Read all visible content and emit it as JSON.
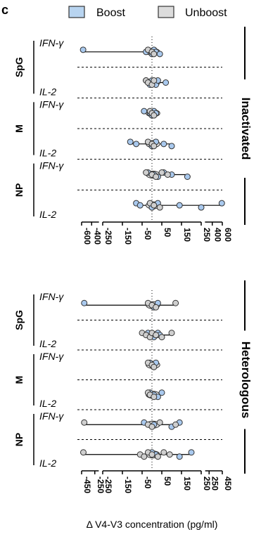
{
  "panel_letter": "c",
  "legend": {
    "items": [
      {
        "label": "Boost",
        "color": "#b8d4f0"
      },
      {
        "label": "Unboost",
        "color": "#dcdcdc"
      }
    ]
  },
  "colors": {
    "boost": "#a9c9ee",
    "unboost": "#cfcfcf",
    "stroke": "#333333"
  },
  "x_axis_title": "Δ V4-V3 concentration (pg/ml)",
  "chart_data": [
    {
      "type": "scatter",
      "group": "Inactivated",
      "x_ticks": [
        "-600",
        "-400",
        "-250",
        "-150",
        "-50",
        "50",
        "150",
        "250",
        "400",
        "600"
      ],
      "rows": [
        {
          "antigen": "SpG",
          "cytokine": "IFN-γ",
          "series": "Boost",
          "values": [
            -570,
            -30,
            0,
            10,
            20,
            40
          ]
        },
        {
          "antigen": "SpG",
          "cytokine": "IFN-γ",
          "series": "Unboost",
          "values": [
            -20,
            0,
            10
          ]
        },
        {
          "antigen": "SpG",
          "cytokine": "IL-2",
          "series": "Boost",
          "values": [
            -30,
            -20,
            -10,
            0,
            10,
            20,
            30,
            70
          ]
        },
        {
          "antigen": "SpG",
          "cytokine": "IL-2",
          "series": "Unboost",
          "values": [
            -30,
            -20,
            0,
            10
          ]
        },
        {
          "antigen": "M",
          "cytokine": "IFN-γ",
          "series": "Boost",
          "values": [
            -40,
            -10,
            0,
            10,
            20
          ]
        },
        {
          "antigen": "M",
          "cytokine": "IFN-γ",
          "series": "Unboost",
          "values": [
            -10,
            0,
            10
          ]
        },
        {
          "antigen": "M",
          "cytokine": "IL-2",
          "series": "Boost",
          "values": [
            -110,
            -80,
            0,
            20,
            60,
            100
          ]
        },
        {
          "antigen": "M",
          "cytokine": "IL-2",
          "series": "Unboost",
          "values": [
            -20,
            0,
            10
          ]
        },
        {
          "antigen": "NP",
          "cytokine": "IFN-γ",
          "series": "Boost",
          "values": [
            -20,
            10,
            30,
            60,
            100,
            180
          ]
        },
        {
          "antigen": "NP",
          "cytokine": "IFN-γ",
          "series": "Unboost",
          "values": [
            -30,
            0,
            20,
            50,
            80
          ]
        },
        {
          "antigen": "NP",
          "cytokine": "IL-2",
          "series": "Boost",
          "values": [
            -80,
            -60,
            0,
            30,
            140,
            250,
            590
          ]
        },
        {
          "antigen": "NP",
          "cytokine": "IL-2",
          "series": "Unboost",
          "values": [
            -10,
            10,
            40
          ]
        }
      ]
    },
    {
      "type": "scatter",
      "group": "Heterologous",
      "x_ticks": [
        "-450",
        "-250",
        "-250",
        "-150",
        "-50",
        "50",
        "150",
        "250",
        "250",
        "450"
      ],
      "rows": [
        {
          "antigen": "SpG",
          "cytokine": "IFN-γ",
          "series": "Boost",
          "values": [
            -420,
            0,
            10,
            30
          ]
        },
        {
          "antigen": "SpG",
          "cytokine": "IFN-γ",
          "series": "Unboost",
          "values": [
            -20,
            0,
            20,
            120
          ]
        },
        {
          "antigen": "SpG",
          "cytokine": "IL-2",
          "series": "Boost",
          "values": [
            -20,
            0,
            10,
            30,
            40
          ]
        },
        {
          "antigen": "SpG",
          "cytokine": "IL-2",
          "series": "Unboost",
          "values": [
            -50,
            -30,
            -10,
            0,
            20,
            50,
            100
          ]
        },
        {
          "antigen": "M",
          "cytokine": "IFN-γ",
          "series": "Boost",
          "values": [
            -10,
            0,
            10,
            20
          ]
        },
        {
          "antigen": "M",
          "cytokine": "IFN-γ",
          "series": "Unboost",
          "values": [
            -20,
            0,
            10
          ]
        },
        {
          "antigen": "M",
          "cytokine": "IL-2",
          "series": "Boost",
          "values": [
            -10,
            10,
            30,
            50
          ]
        },
        {
          "antigen": "M",
          "cytokine": "IL-2",
          "series": "Unboost",
          "values": [
            -20,
            -10,
            10
          ]
        },
        {
          "antigen": "NP",
          "cytokine": "IFN-γ",
          "series": "Boost",
          "values": [
            -40,
            10,
            100,
            140
          ]
        },
        {
          "antigen": "NP",
          "cytokine": "IFN-γ",
          "series": "Unboost",
          "values": [
            -420,
            -20,
            0,
            40,
            120
          ]
        },
        {
          "antigen": "NP",
          "cytokine": "IL-2",
          "series": "Boost",
          "values": [
            0,
            20,
            140,
            200
          ]
        },
        {
          "antigen": "NP",
          "cytokine": "IL-2",
          "series": "Unboost",
          "values": [
            -430,
            -60,
            -40,
            -20,
            0,
            30,
            60,
            90
          ]
        }
      ]
    }
  ]
}
